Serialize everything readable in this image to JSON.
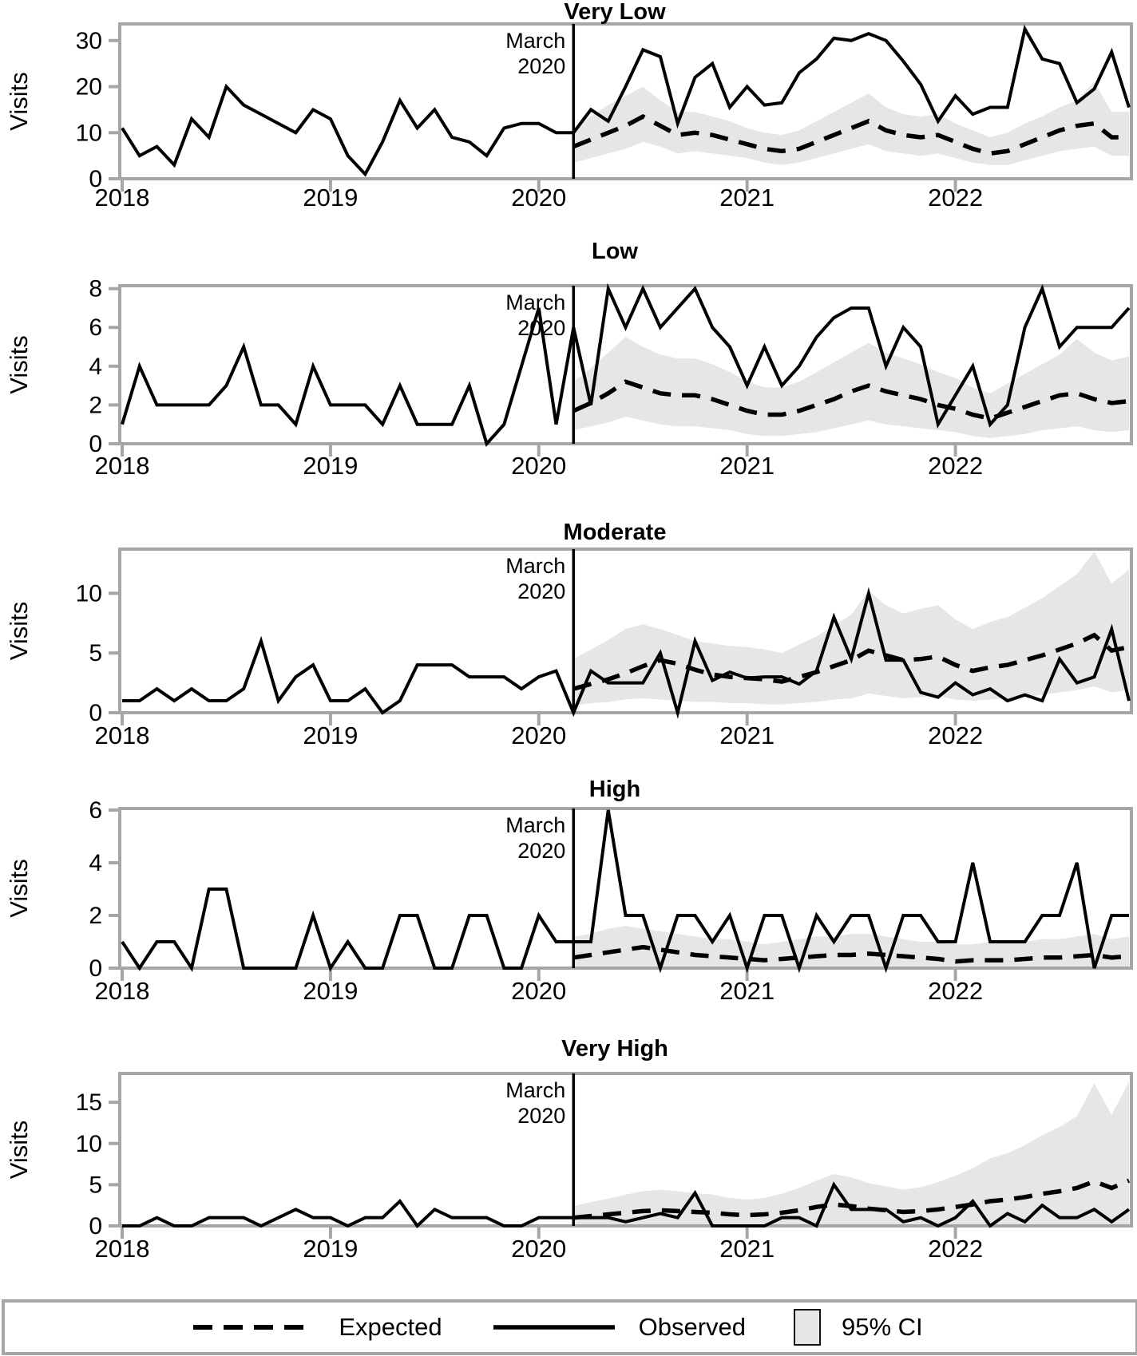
{
  "ylabel": "Visits",
  "years": [
    "2018",
    "2019",
    "2020",
    "2021",
    "2022"
  ],
  "annotation": {
    "line1": "March",
    "line2": "2020"
  },
  "legend": {
    "expected": "Expected",
    "observed": "Observed",
    "ci": "95% CI"
  },
  "colors": {
    "line": "#000000",
    "band": "#e6e6e6",
    "frame": "#a6a6a6",
    "text": "#000000"
  },
  "chart_data": {
    "type": "line",
    "x_unit": "month",
    "x_range": [
      "2018-01",
      "2022-11"
    ],
    "intervention_label": "March 2020",
    "intervention_index": 26,
    "xtick_years": [
      2018,
      2019,
      2020,
      2021,
      2022
    ],
    "legend_position": "bottom",
    "panels": [
      {
        "title": "Very Low",
        "ymax": 33.6,
        "yticks": [
          0,
          10,
          20,
          30
        ],
        "observed": [
          11,
          5,
          7,
          3,
          13,
          9,
          20,
          16,
          14,
          12,
          10,
          15,
          13,
          5,
          1,
          8,
          17,
          11,
          15,
          9,
          8,
          5,
          11,
          12,
          12,
          10,
          10,
          15,
          12.5,
          20,
          28,
          26.5,
          12,
          22,
          25,
          15.5,
          20,
          16,
          16.5,
          23,
          26,
          30.5,
          30,
          31.5,
          30,
          25.5,
          20.5,
          12.5,
          18,
          14,
          15.5,
          15.5,
          32.5,
          26,
          25,
          16.5,
          19.5,
          27.5,
          15.5
        ],
        "expected": [
          7,
          8.5,
          10,
          11.5,
          13.5,
          11.5,
          9.5,
          10,
          9.5,
          8.5,
          7.5,
          6.5,
          6,
          6.5,
          8,
          9.5,
          11,
          12.5,
          10.5,
          9.5,
          9,
          9.5,
          8,
          6.5,
          5.5,
          6,
          7.5,
          9,
          10.5,
          11.5,
          12,
          9,
          9
        ],
        "ci_lower": [
          3.5,
          4.5,
          5.5,
          6.5,
          8,
          7,
          5.5,
          6,
          5.5,
          5,
          4.5,
          3.5,
          3,
          3.5,
          4.5,
          5.5,
          6.5,
          7.5,
          6,
          5.5,
          5,
          5.5,
          4.5,
          3.5,
          3,
          3,
          4,
          5,
          6,
          6.5,
          7,
          5,
          5
        ],
        "ci_upper": [
          11,
          13.5,
          16,
          18,
          20,
          17,
          14.5,
          14.5,
          13.5,
          12.5,
          11,
          10,
          9.5,
          10.5,
          12.5,
          14.5,
          16.5,
          18.5,
          15.5,
          14,
          13.5,
          14,
          12,
          10.5,
          9,
          10,
          12,
          13.5,
          15.5,
          17,
          21,
          14.5,
          14.5
        ]
      },
      {
        "title": "Low",
        "ymax": 8.15,
        "yticks": [
          0,
          2,
          4,
          6,
          8
        ],
        "observed": [
          1,
          4,
          2,
          2,
          2,
          2,
          3,
          5,
          2,
          2,
          1,
          4,
          2,
          2,
          2,
          1,
          3,
          1,
          1,
          1,
          3,
          0,
          1,
          4,
          7,
          1,
          6,
          2,
          8,
          6,
          8,
          6,
          7,
          8,
          6,
          5,
          3,
          5,
          3,
          4,
          5.5,
          6.5,
          7,
          7,
          4,
          6,
          5,
          1,
          2.5,
          4,
          1,
          2,
          6,
          8,
          5,
          6,
          6,
          6,
          7
        ],
        "expected": [
          1.7,
          2.1,
          2.6,
          3.2,
          2.9,
          2.6,
          2.5,
          2.5,
          2.3,
          2,
          1.7,
          1.5,
          1.5,
          1.7,
          2,
          2.3,
          2.7,
          3,
          2.7,
          2.5,
          2.3,
          2,
          1.8,
          1.5,
          1.3,
          1.6,
          1.9,
          2.2,
          2.5,
          2.6,
          2.3,
          2.1,
          2.2
        ],
        "ci_lower": [
          0.7,
          0.9,
          1.1,
          1.4,
          1.2,
          1,
          0.9,
          0.9,
          0.8,
          0.7,
          0.5,
          0.4,
          0.4,
          0.5,
          0.6,
          0.8,
          1,
          1.2,
          1,
          0.9,
          0.8,
          0.7,
          0.6,
          0.4,
          0.3,
          0.4,
          0.5,
          0.7,
          0.8,
          0.9,
          0.7,
          0.6,
          0.7
        ],
        "ci_upper": [
          3.2,
          3.9,
          4.7,
          5.5,
          5,
          4.6,
          4.4,
          4.4,
          4.1,
          3.7,
          3.2,
          2.9,
          2.9,
          3.2,
          3.7,
          4.2,
          4.7,
          5.2,
          4.7,
          4.4,
          4.1,
          3.7,
          3.4,
          2.9,
          2.6,
          3.1,
          3.6,
          4.1,
          4.6,
          5.4,
          4.7,
          4.3,
          4.5
        ]
      },
      {
        "title": "Moderate",
        "ymax": 13.7,
        "yticks": [
          0,
          5,
          10
        ],
        "observed": [
          1,
          1,
          2,
          1,
          2,
          1,
          1,
          2,
          6,
          1,
          3,
          4,
          1,
          1,
          2,
          0,
          1,
          4,
          4,
          4,
          3,
          3,
          3,
          2,
          3,
          3.5,
          0,
          3.5,
          2.5,
          2.5,
          2.5,
          5,
          0,
          6,
          2.7,
          3.4,
          2.9,
          3,
          3,
          2.4,
          3.5,
          8,
          4.5,
          10,
          4.4,
          4.4,
          1.7,
          1.3,
          2.5,
          1.5,
          2,
          1,
          1.5,
          1,
          4.5,
          2.5,
          3,
          7,
          1
        ],
        "expected": [
          2,
          2.4,
          2.8,
          3.3,
          3.9,
          4.4,
          4.1,
          3.6,
          3.2,
          3,
          2.9,
          2.8,
          2.6,
          3,
          3.4,
          3.9,
          4.4,
          5.2,
          4.8,
          4.4,
          4.5,
          4.7,
          4,
          3.5,
          3.8,
          4,
          4.4,
          4.8,
          5.3,
          5.8,
          6.5,
          5.2,
          5.5
        ],
        "ci_lower": [
          0.6,
          0.8,
          0.9,
          1.1,
          1.2,
          1.1,
          1,
          0.9,
          0.9,
          0.8,
          0.8,
          0.7,
          0.7,
          0.8,
          0.9,
          1.1,
          1.2,
          1.6,
          1.4,
          1.2,
          1.3,
          1.4,
          1.1,
          1,
          1.1,
          1.2,
          1.3,
          1.5,
          1.7,
          1.9,
          2.2,
          1.7,
          1.9
        ],
        "ci_upper": [
          4.5,
          5.3,
          6.1,
          7,
          7.4,
          7,
          6.5,
          6,
          5.8,
          5.6,
          5.5,
          5.3,
          5,
          5.7,
          6.4,
          7.3,
          8.2,
          10.2,
          9,
          8.3,
          8.7,
          9,
          7.8,
          7,
          7.6,
          8,
          8.8,
          9.6,
          10.6,
          11.6,
          13.5,
          10.8,
          12
        ]
      },
      {
        "title": "High",
        "ymax": 6.06,
        "yticks": [
          0,
          2,
          4,
          6
        ],
        "observed": [
          1,
          0,
          1,
          1,
          0,
          3,
          3,
          0,
          0,
          0,
          0,
          2,
          0,
          1,
          0,
          0,
          2,
          2,
          0,
          0,
          2,
          2,
          0,
          0,
          2,
          1,
          1,
          1,
          6,
          2,
          2,
          0,
          2,
          2,
          1,
          2,
          0,
          2,
          2,
          0,
          2,
          1,
          2,
          2,
          0,
          2,
          2,
          1,
          1,
          4,
          1,
          1,
          1,
          2,
          2,
          4,
          0,
          2,
          2
        ],
        "expected": [
          0.4,
          0.5,
          0.6,
          0.7,
          0.8,
          0.7,
          0.6,
          0.5,
          0.45,
          0.4,
          0.35,
          0.3,
          0.35,
          0.4,
          0.45,
          0.5,
          0.5,
          0.55,
          0.5,
          0.45,
          0.4,
          0.35,
          0.25,
          0.3,
          0.3,
          0.3,
          0.35,
          0.4,
          0.4,
          0.45,
          0.5,
          0.4,
          0.45
        ],
        "ci_lower": [
          0,
          0,
          0,
          0,
          0,
          0,
          0,
          0,
          0,
          0,
          0,
          0,
          0,
          0,
          0,
          0,
          0,
          0,
          0,
          0,
          0,
          0,
          0,
          0,
          0,
          0,
          0,
          0,
          0,
          0,
          0,
          0,
          0
        ],
        "ci_upper": [
          1.2,
          1.3,
          1.5,
          1.6,
          1.5,
          1.4,
          1.3,
          1.2,
          1.1,
          1.1,
          1,
          0.9,
          1,
          1.1,
          1.2,
          1.2,
          1.3,
          1.3,
          1.2,
          1.1,
          1,
          1,
          0.9,
          0.9,
          1,
          1,
          1,
          1.1,
          1.1,
          1.2,
          1.3,
          1.1,
          1.2
        ]
      },
      {
        "title": "Very High",
        "ymax": 18.5,
        "yticks": [
          0,
          5,
          10,
          15
        ],
        "observed": [
          0,
          0,
          1,
          0,
          0,
          1,
          1,
          1,
          0,
          1,
          2,
          1,
          1,
          0,
          1,
          1,
          3,
          0,
          2,
          1,
          1,
          1,
          0,
          0,
          1,
          1,
          1,
          1,
          1,
          0.5,
          1,
          1.5,
          1,
          4,
          0,
          0,
          0,
          0,
          1,
          1,
          0,
          5,
          2,
          2,
          2,
          0.5,
          1,
          0,
          1,
          3,
          0,
          1.5,
          0.5,
          2.5,
          1,
          1,
          2,
          0.5,
          2
        ],
        "expected": [
          1,
          1.2,
          1.4,
          1.6,
          1.8,
          1.9,
          1.8,
          1.7,
          1.6,
          1.4,
          1.3,
          1.4,
          1.6,
          1.9,
          2.3,
          2.6,
          2.4,
          2.1,
          1.9,
          1.7,
          1.8,
          2,
          2.3,
          2.6,
          3,
          3.2,
          3.5,
          3.9,
          4.2,
          4.6,
          5.4,
          4.6,
          5.5
        ],
        "ci_lower": [
          0,
          0,
          0,
          0,
          0,
          0,
          0,
          0,
          0,
          0,
          0,
          0,
          0,
          0,
          0,
          0,
          0,
          0,
          0,
          0,
          0,
          0,
          0,
          0,
          0,
          0,
          0,
          0,
          0,
          0,
          0,
          0,
          0
        ],
        "ci_upper": [
          2.4,
          2.9,
          3.3,
          3.8,
          4.2,
          4.4,
          4.2,
          4,
          3.8,
          3.4,
          3.2,
          3.4,
          3.9,
          4.6,
          5.5,
          6.3,
          5.9,
          5.2,
          4.8,
          4.4,
          4.7,
          5.3,
          6.1,
          7,
          8.2,
          8.8,
          9.8,
          11,
          12,
          13.3,
          17.3,
          13.5,
          17.5
        ]
      }
    ]
  }
}
